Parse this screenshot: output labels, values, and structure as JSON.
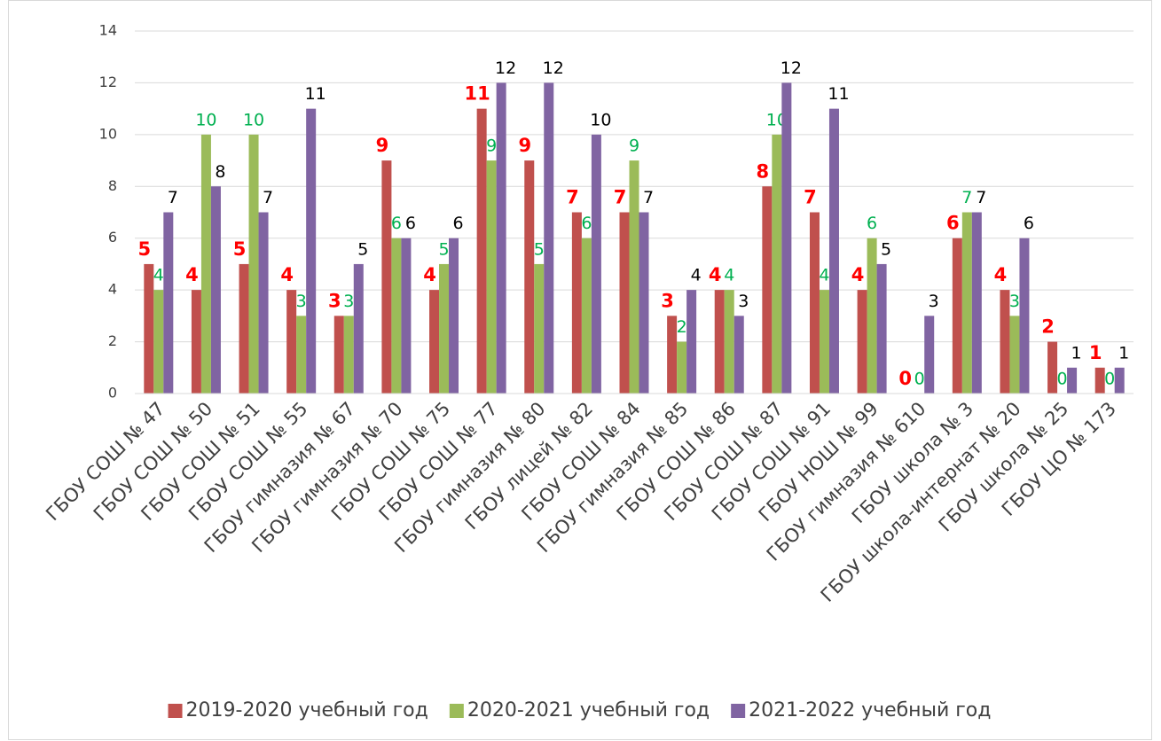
{
  "chart_data": {
    "type": "bar",
    "categories": [
      "ГБОУ СОШ № 47",
      "ГБОУ СОШ № 50",
      "ГБОУ СОШ № 51",
      "ГБОУ СОШ № 55",
      "ГБОУ гимназия № 67",
      "ГБОУ гимназия № 70",
      "ГБОУ СОШ № 75",
      "ГБОУ СОШ № 77",
      "ГБОУ гимназия № 80",
      "ГБОУ лицей № 82",
      "ГБОУ СОШ № 84",
      "ГБОУ гимназия № 85",
      "ГБОУ СОШ № 86",
      "ГБОУ СОШ № 87",
      "ГБОУ СОШ № 91",
      "ГБОУ НОШ № 99",
      "ГБОУ гимназия № 610",
      "ГБОУ школа № 3",
      "ГБОУ школа-интернат № 20",
      "ГБОУ школа № 25",
      "ГБОУ ЦО № 173"
    ],
    "series": [
      {
        "name": "2019-2020 учебный год",
        "color": "#c0504d",
        "label_color": "#ff0000",
        "values": [
          5,
          4,
          5,
          4,
          3,
          9,
          4,
          11,
          9,
          7,
          7,
          3,
          4,
          8,
          7,
          4,
          0,
          6,
          4,
          2,
          1
        ]
      },
      {
        "name": "2020-2021 учебный год",
        "color": "#9bbb59",
        "label_color": "#00b050",
        "values": [
          4,
          10,
          10,
          3,
          3,
          6,
          5,
          9,
          5,
          6,
          9,
          2,
          4,
          10,
          4,
          6,
          0,
          7,
          3,
          0,
          0
        ]
      },
      {
        "name": "2021-2022 учебный год",
        "color": "#8064a2",
        "label_color": "#000000",
        "values": [
          7,
          8,
          7,
          11,
          5,
          6,
          6,
          12,
          12,
          10,
          7,
          4,
          3,
          12,
          11,
          5,
          3,
          7,
          6,
          1,
          1
        ]
      }
    ],
    "ylim": [
      0,
      14
    ],
    "yticks": [
      0,
      2,
      4,
      6,
      8,
      10,
      12,
      14
    ],
    "grid": true,
    "legend": "bottom"
  }
}
